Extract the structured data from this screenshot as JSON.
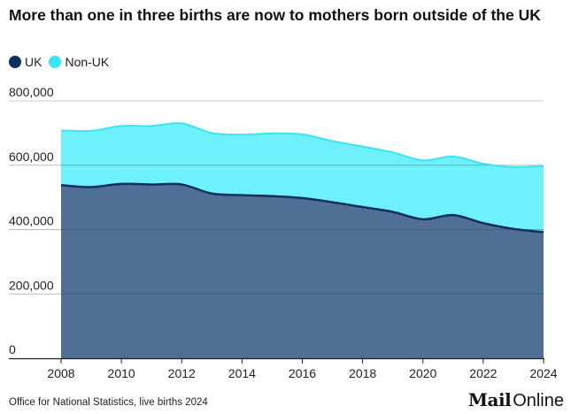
{
  "header": {
    "title": "More than one in three births are now to mothers born outside of the UK"
  },
  "footer": {
    "source": "Office for National Statistics, live births 2024",
    "brand_bold": "Mail",
    "brand_light": "Online"
  },
  "chart_data": {
    "type": "area",
    "title": "More than one in three births are now to mothers born outside of the UK",
    "xlabel": "",
    "ylabel": "",
    "stacked": true,
    "x": [
      2008,
      2009,
      2010,
      2011,
      2012,
      2013,
      2014,
      2015,
      2016,
      2017,
      2018,
      2019,
      2020,
      2021,
      2022,
      2023,
      2024
    ],
    "series": [
      {
        "name": "UK",
        "color": "#0b2f5f",
        "fill": "#4f6f95",
        "values": [
          538000,
          532000,
          542000,
          540000,
          540000,
          512000,
          507000,
          504000,
          498000,
          485000,
          470000,
          455000,
          432000,
          445000,
          420000,
          402000,
          392000
        ]
      },
      {
        "name": "Non-UK",
        "color": "#3ee3f5",
        "fill": "#6ff1fb",
        "values": [
          170000,
          175000,
          180000,
          182000,
          190000,
          188000,
          188000,
          195000,
          198000,
          190000,
          188000,
          185000,
          183000,
          182000,
          185000,
          192000,
          205000
        ]
      }
    ],
    "ylim": [
      0,
      800000
    ],
    "xlim": [
      2008,
      2024
    ],
    "yticks": [
      0,
      200000,
      400000,
      600000,
      800000
    ],
    "ytick_labels": [
      "0",
      "200,000",
      "400,000",
      "600,000",
      "800,000"
    ],
    "xticks": [
      2008,
      2010,
      2012,
      2014,
      2016,
      2018,
      2020,
      2022,
      2024
    ],
    "xtick_labels": [
      "2008",
      "2010",
      "2012",
      "2014",
      "2016",
      "2018",
      "2020",
      "2022",
      "2024"
    ],
    "grid": true,
    "legend_position": "top-left"
  }
}
